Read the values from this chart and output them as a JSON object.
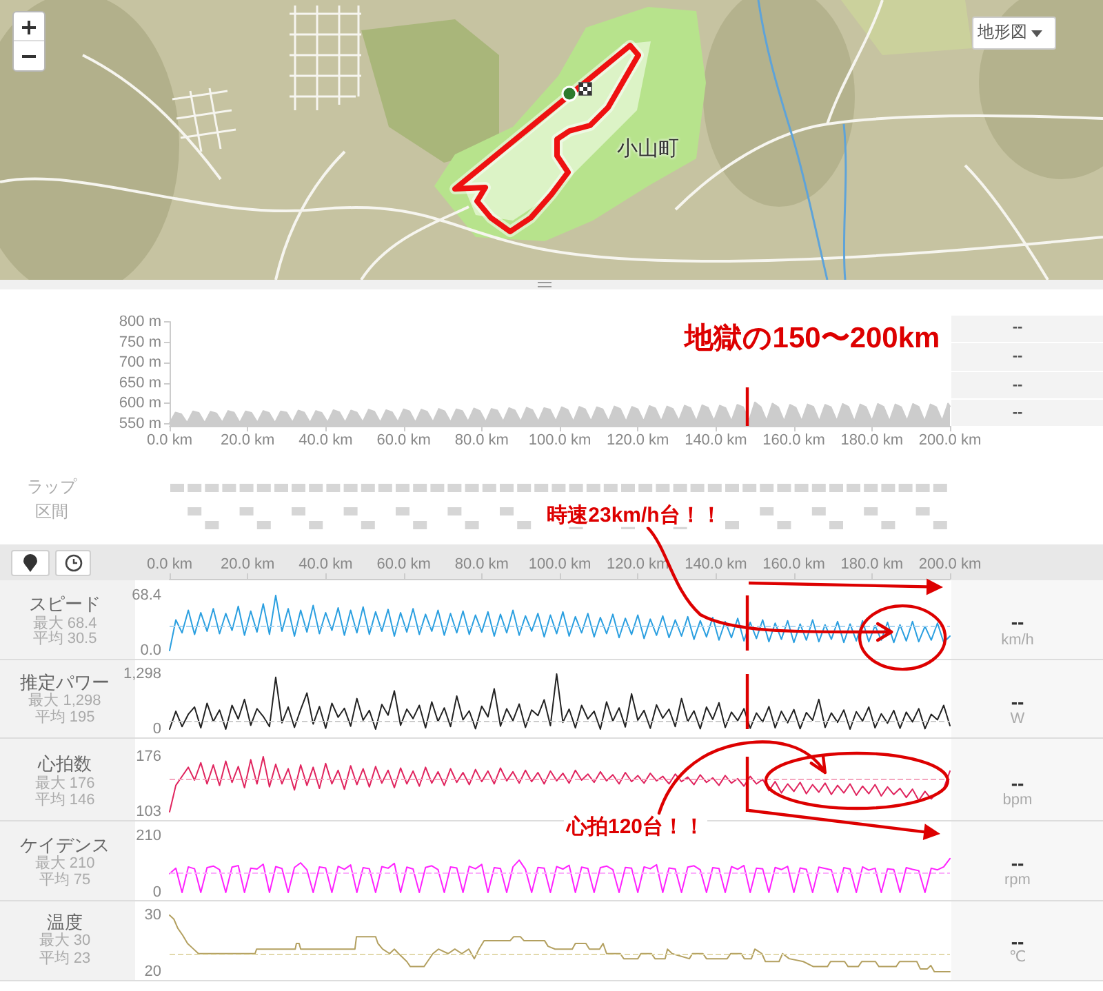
{
  "chart_data": [
    {
      "type": "other",
      "annotations": [
        "地形図",
        "小山町"
      ]
    },
    {
      "type": "area",
      "x": [
        0,
        1.5,
        3,
        4.5,
        6,
        7.5,
        9,
        10.5,
        12,
        13.5,
        15,
        16.5,
        18,
        19.5,
        21,
        22.5,
        24,
        25.5,
        27,
        28.5,
        30,
        31.5,
        33,
        34.5,
        36,
        37.5,
        39,
        40.5,
        42,
        43.5,
        45,
        46.5,
        48,
        49.5,
        51,
        52.5,
        54,
        55.5,
        57,
        58.5,
        60,
        61.5,
        63,
        64.5,
        66,
        67.5,
        69,
        70.5,
        72,
        73.5,
        75,
        76.5,
        78,
        79.5,
        81,
        82.5,
        84,
        85.5,
        87,
        88.5,
        90,
        91.5,
        93,
        94.5,
        96,
        97.5,
        99,
        100.5,
        102,
        103.5,
        105,
        106.5,
        108,
        109.5,
        111,
        112.5,
        114,
        115.5,
        117,
        118.5,
        120,
        121.5,
        123,
        124.5,
        126,
        127.5,
        129,
        130.5,
        132,
        133.5,
        135,
        136.5,
        138,
        139.5,
        141,
        142.5,
        144,
        145.5,
        147,
        148.5,
        150,
        151.5,
        153,
        154.5,
        156,
        157.5,
        159,
        160.5,
        162,
        163.5,
        165,
        166.5,
        168,
        169.5,
        171,
        172.5,
        174,
        175.5,
        177,
        178.5,
        180,
        181.5,
        183,
        184.5,
        186,
        187.5,
        189,
        190.5,
        192,
        193.5,
        195,
        196.5,
        198,
        199.5,
        200
      ],
      "values": [
        552,
        578,
        574,
        553,
        581,
        577,
        553,
        580,
        576,
        554,
        582,
        578,
        553,
        581,
        577,
        554,
        582,
        577,
        553,
        581,
        578,
        554,
        583,
        578,
        553,
        582,
        577,
        554,
        584,
        579,
        554,
        583,
        578,
        555,
        585,
        580,
        554,
        584,
        579,
        555,
        586,
        581,
        554,
        585,
        580,
        555,
        587,
        581,
        555,
        586,
        582,
        556,
        588,
        582,
        555,
        587,
        583,
        556,
        589,
        583,
        556,
        590,
        584,
        556,
        589,
        585,
        557,
        591,
        585,
        556,
        592,
        586,
        557,
        591,
        586,
        557,
        593,
        587,
        556,
        592,
        586,
        557,
        594,
        588,
        557,
        593,
        587,
        558,
        595,
        589,
        557,
        596,
        590,
        558,
        595,
        589,
        557,
        597,
        591,
        558,
        603,
        592,
        558,
        600,
        591,
        557,
        597,
        590,
        558,
        598,
        592,
        557,
        597,
        591,
        558,
        599,
        592,
        557,
        598,
        591,
        558,
        599,
        592,
        557,
        598,
        591,
        558,
        599,
        592,
        557,
        598,
        591,
        558,
        600,
        593
      ],
      "color": "#cccccc",
      "xlim": [
        0,
        200
      ],
      "xticks": [
        {
          "value": 0,
          "label": "0.0 km"
        },
        {
          "value": 20,
          "label": "20.0 km"
        },
        {
          "value": 40,
          "label": "40.0 km"
        },
        {
          "value": 60,
          "label": "60.0 km"
        },
        {
          "value": 80,
          "label": "80.0 km"
        },
        {
          "value": 100,
          "label": "100.0 km"
        },
        {
          "value": 120,
          "label": "120.0 km"
        },
        {
          "value": 140,
          "label": "140.0 km"
        },
        {
          "value": 160,
          "label": "160.0 km"
        },
        {
          "value": 180,
          "label": "180.0 km"
        },
        {
          "value": 200,
          "label": "200.0 km"
        }
      ],
      "ylim": [
        545,
        800
      ],
      "yticks": [
        {
          "value": 550,
          "label": "550 m"
        },
        {
          "value": 600,
          "label": "600 m"
        },
        {
          "value": 650,
          "label": "650 m"
        },
        {
          "value": 700,
          "label": "700 m"
        },
        {
          "value": 750,
          "label": "750 m"
        },
        {
          "value": 800,
          "label": "800 m"
        }
      ],
      "ref_lines": [
        {
          "axis": "x",
          "value": 148,
          "color": "#dd0000"
        }
      ],
      "annotations": [
        "地獄の150〜200km",
        "--",
        "--",
        "--",
        "--"
      ]
    },
    {
      "type": "other",
      "annotations": [
        "ラップ",
        "区間"
      ]
    },
    {
      "type": "line",
      "ylabel": "スピード",
      "x": [
        0,
        1.6,
        3.2,
        4.8,
        6.4,
        8,
        9.6,
        11.2,
        12.8,
        14.4,
        16,
        17.6,
        19.2,
        20.8,
        22.4,
        24,
        25.6,
        27.2,
        28.8,
        30.4,
        32,
        33.6,
        35.2,
        36.8,
        38.4,
        40,
        41.6,
        43.2,
        44.8,
        46.4,
        48,
        49.6,
        51.2,
        52.8,
        54.4,
        56,
        57.6,
        59.2,
        60.8,
        62.4,
        64,
        65.6,
        67.2,
        68.8,
        70.4,
        72,
        73.6,
        75.2,
        76.8,
        78.4,
        80,
        81.6,
        83.2,
        84.8,
        86.4,
        88,
        89.6,
        91.2,
        92.8,
        94.4,
        96,
        97.6,
        99.2,
        100.8,
        102.4,
        104,
        105.6,
        107.2,
        108.8,
        110.4,
        112,
        113.6,
        115.2,
        116.8,
        118.4,
        120,
        121.6,
        123.2,
        124.8,
        126.4,
        128,
        129.6,
        131.2,
        132.8,
        134.4,
        136,
        137.6,
        139.2,
        140.8,
        142.4,
        144,
        145.6,
        147.2,
        148.8,
        150.4,
        152,
        153.6,
        155.2,
        156.8,
        158.4,
        160,
        161.6,
        163.2,
        164.8,
        166.4,
        168,
        169.6,
        171.2,
        172.8,
        174.4,
        176,
        177.6,
        179.2,
        180.8,
        182.4,
        184,
        185.6,
        187.2,
        188.8,
        190.4,
        192,
        193.6,
        195.2,
        196.8,
        198.4,
        200
      ],
      "values": [
        0,
        38,
        22,
        50,
        20,
        47,
        24,
        52,
        21,
        46,
        25,
        55,
        19,
        49,
        23,
        58,
        20,
        68.4,
        24,
        52,
        18,
        50,
        23,
        56,
        21,
        47,
        25,
        53,
        19,
        50,
        22,
        54,
        20,
        48,
        24,
        51,
        18,
        47,
        23,
        52,
        20,
        45,
        24,
        50,
        19,
        46,
        22,
        49,
        20,
        44,
        23,
        48,
        18,
        45,
        22,
        50,
        19,
        43,
        24,
        46,
        17,
        44,
        21,
        48,
        18,
        42,
        22,
        46,
        17,
        41,
        21,
        45,
        16,
        40,
        20,
        44,
        15,
        39,
        19,
        43,
        16,
        38,
        18,
        42,
        14,
        37,
        17,
        41,
        13,
        36,
        16,
        40,
        12,
        35,
        15,
        38,
        11,
        34,
        14,
        37,
        10,
        33,
        13,
        38,
        11,
        32,
        14,
        36,
        10,
        33,
        12,
        37,
        11,
        31,
        13,
        35,
        10,
        32,
        12,
        36,
        11,
        30,
        13,
        34,
        10,
        18
      ],
      "color": "#2a9fe0",
      "xlim": [
        0,
        200
      ],
      "x2lim": [
        0,
        200
      ],
      "x2ticks": [
        {
          "value": 0,
          "label": "0.0 km"
        },
        {
          "value": 20,
          "label": "20.0 km"
        },
        {
          "value": 40,
          "label": "40.0 km"
        },
        {
          "value": 60,
          "label": "60.0 km"
        },
        {
          "value": 80,
          "label": "80.0 km"
        },
        {
          "value": 100,
          "label": "100.0 km"
        },
        {
          "value": 120,
          "label": "120.0 km"
        },
        {
          "value": 140,
          "label": "140.0 km"
        },
        {
          "value": 160,
          "label": "160.0 km"
        },
        {
          "value": 180,
          "label": "180.0 km"
        },
        {
          "value": 200,
          "label": "200.0 km"
        }
      ],
      "ylim": [
        0,
        68.4
      ],
      "yticks": [
        {
          "value": 0,
          "label": "0.0"
        },
        68.4
      ],
      "ref_lines": [
        {
          "axis": "y",
          "value": 30.5,
          "color": "#a9d4f0",
          "line_style": "dashed"
        },
        {
          "axis": "x",
          "value": 148,
          "color": "#dd0000"
        }
      ],
      "annotations": [
        "最大 68.4",
        "平均 30.5",
        "--",
        "km/h",
        {
          "text": "時速23km/h台！！",
          "x": 185,
          "y": 23
        }
      ]
    },
    {
      "type": "line",
      "ylabel": "推定パワー",
      "x": [
        0,
        1.6,
        3.2,
        4.8,
        6.4,
        8,
        9.6,
        11.2,
        12.8,
        14.4,
        16,
        17.6,
        19.2,
        20.8,
        22.4,
        24,
        25.6,
        27.2,
        28.8,
        30.4,
        32,
        33.6,
        35.2,
        36.8,
        38.4,
        40,
        41.6,
        43.2,
        44.8,
        46.4,
        48,
        49.6,
        51.2,
        52.8,
        54.4,
        56,
        57.6,
        59.2,
        60.8,
        62.4,
        64,
        65.6,
        67.2,
        68.8,
        70.4,
        72,
        73.6,
        75.2,
        76.8,
        78.4,
        80,
        81.6,
        83.2,
        84.8,
        86.4,
        88,
        89.6,
        91.2,
        92.8,
        94.4,
        96,
        97.6,
        99.2,
        100.8,
        102.4,
        104,
        105.6,
        107.2,
        108.8,
        110.4,
        112,
        113.6,
        115.2,
        116.8,
        118.4,
        120,
        121.6,
        123.2,
        124.8,
        126.4,
        128,
        129.6,
        131.2,
        132.8,
        134.4,
        136,
        137.6,
        139.2,
        140.8,
        142.4,
        144,
        145.6,
        147.2,
        148.8,
        150.4,
        152,
        153.6,
        155.2,
        156.8,
        158.4,
        160,
        161.6,
        163.2,
        164.8,
        166.4,
        168,
        169.6,
        171.2,
        172.8,
        174.4,
        176,
        177.6,
        179.2,
        180.8,
        182.4,
        184,
        185.6,
        187.2,
        188.8,
        190.4,
        192,
        193.6,
        195.2,
        196.8,
        198.4,
        200
      ],
      "values": [
        0,
        420,
        60,
        350,
        520,
        30,
        610,
        180,
        450,
        0,
        560,
        240,
        700,
        90,
        480,
        300,
        60,
        1220,
        150,
        520,
        40,
        460,
        850,
        120,
        530,
        20,
        610,
        280,
        490,
        70,
        720,
        210,
        440,
        0,
        580,
        330,
        900,
        90,
        470,
        250,
        560,
        30,
        640,
        180,
        500,
        60,
        780,
        220,
        430,
        10,
        540,
        290,
        950,
        70,
        480,
        200,
        590,
        40,
        450,
        320,
        690,
        80,
        1298,
        160,
        470,
        30,
        560,
        240,
        420,
        0,
        640,
        190,
        500,
        50,
        830,
        210,
        440,
        20,
        570,
        260,
        470,
        60,
        720,
        180,
        430,
        10,
        520,
        230,
        620,
        40,
        400,
        200,
        480,
        20,
        380,
        170,
        530,
        30,
        420,
        150,
        460,
        10,
        390,
        210,
        700,
        40,
        380,
        160,
        450,
        0,
        410,
        190,
        520,
        30,
        360,
        140,
        440,
        20,
        400,
        170,
        480,
        10,
        350,
        220,
        560,
        80
      ],
      "color": "#222222",
      "xlim": [
        0,
        200
      ],
      "ylim": [
        0,
        1298
      ],
      "yticks": [
        0,
        {
          "value": 1298,
          "label": "1,298"
        }
      ],
      "tick_labels": "y",
      "ref_lines": [
        {
          "axis": "y",
          "value": 195,
          "color": "#cccccc",
          "line_style": "dashed"
        },
        {
          "axis": "x",
          "value": 148,
          "color": "#dd0000"
        }
      ],
      "annotations": [
        "最大 1,298",
        "平均 195",
        "--",
        "W"
      ]
    },
    {
      "type": "line",
      "ylabel": "心拍数",
      "x": [
        0,
        1.6,
        3.2,
        4.8,
        6.4,
        8,
        9.6,
        11.2,
        12.8,
        14.4,
        16,
        17.6,
        19.2,
        20.8,
        22.4,
        24,
        25.6,
        27.2,
        28.8,
        30.4,
        32,
        33.6,
        35.2,
        36.8,
        38.4,
        40,
        41.6,
        43.2,
        44.8,
        46.4,
        48,
        49.6,
        51.2,
        52.8,
        54.4,
        56,
        57.6,
        59.2,
        60.8,
        62.4,
        64,
        65.6,
        67.2,
        68.8,
        70.4,
        72,
        73.6,
        75.2,
        76.8,
        78.4,
        80,
        81.6,
        83.2,
        84.8,
        86.4,
        88,
        89.6,
        91.2,
        92.8,
        94.4,
        96,
        97.6,
        99.2,
        100.8,
        102.4,
        104,
        105.6,
        107.2,
        108.8,
        110.4,
        112,
        113.6,
        115.2,
        116.8,
        118.4,
        120,
        121.6,
        123.2,
        124.8,
        126.4,
        128,
        129.6,
        131.2,
        132.8,
        134.4,
        136,
        137.6,
        139.2,
        140.8,
        142.4,
        144,
        145.6,
        147.2,
        148.8,
        150.4,
        152,
        153.6,
        155.2,
        156.8,
        158.4,
        160,
        161.6,
        163.2,
        164.8,
        166.4,
        168,
        169.6,
        171.2,
        172.8,
        174.4,
        176,
        177.6,
        179.2,
        180.8,
        182.4,
        184,
        185.6,
        187.2,
        188.8,
        190.4,
        192,
        193.6,
        195.2,
        196.8,
        198.4,
        200
      ],
      "values": [
        103,
        138,
        150,
        162,
        145,
        168,
        140,
        165,
        138,
        170,
        142,
        163,
        135,
        172,
        140,
        176,
        136,
        166,
        140,
        160,
        132,
        165,
        138,
        162,
        134,
        167,
        140,
        158,
        133,
        164,
        139,
        160,
        136,
        163,
        141,
        158,
        135,
        161,
        140,
        157,
        137,
        162,
        141,
        156,
        138,
        160,
        142,
        155,
        139,
        159,
        143,
        157,
        140,
        161,
        144,
        156,
        141,
        158,
        143,
        155,
        140,
        157,
        144,
        154,
        141,
        158,
        145,
        153,
        142,
        156,
        144,
        152,
        140,
        155,
        143,
        151,
        141,
        154,
        144,
        150,
        140,
        153,
        143,
        149,
        139,
        152,
        142,
        148,
        138,
        151,
        141,
        147,
        137,
        150,
        140,
        146,
        131,
        143,
        128,
        140,
        130,
        142,
        127,
        139,
        129,
        141,
        126,
        138,
        128,
        140,
        125,
        137,
        127,
        139,
        124,
        136,
        126,
        134,
        122,
        133,
        118,
        130,
        120,
        128,
        134,
        157
      ],
      "color": "#e0245e",
      "xlim": [
        0,
        200
      ],
      "ylim": [
        103,
        176
      ],
      "yticks": [
        103,
        176
      ],
      "tick_labels": "y",
      "ref_lines": [
        {
          "axis": "y",
          "value": 146,
          "color": "#f4a6bf",
          "line_style": "dashed"
        },
        {
          "axis": "x",
          "value": 148,
          "color": "#dd0000"
        }
      ],
      "annotations": [
        "最大 176",
        "平均 146",
        "--",
        "bpm",
        {
          "text": "心拍120台！！",
          "x": 168,
          "y": 155
        }
      ]
    },
    {
      "type": "line",
      "ylabel": "ケイデンス",
      "x": [
        0,
        1.6,
        3.2,
        4.8,
        6.4,
        8,
        9.6,
        11.2,
        12.8,
        14.4,
        16,
        17.6,
        19.2,
        20.8,
        22.4,
        24,
        25.6,
        27.2,
        28.8,
        30.4,
        32,
        33.6,
        35.2,
        36.8,
        38.4,
        40,
        41.6,
        43.2,
        44.8,
        46.4,
        48,
        49.6,
        51.2,
        52.8,
        54.4,
        56,
        57.6,
        59.2,
        60.8,
        62.4,
        64,
        65.6,
        67.2,
        68.8,
        70.4,
        72,
        73.6,
        75.2,
        76.8,
        78.4,
        80,
        81.6,
        83.2,
        84.8,
        86.4,
        88,
        89.6,
        91.2,
        92.8,
        94.4,
        96,
        97.6,
        99.2,
        100.8,
        102.4,
        104,
        105.6,
        107.2,
        108.8,
        110.4,
        112,
        113.6,
        115.2,
        116.8,
        118.4,
        120,
        121.6,
        123.2,
        124.8,
        126.4,
        128,
        129.6,
        131.2,
        132.8,
        134.4,
        136,
        137.6,
        139.2,
        140.8,
        142.4,
        144,
        145.6,
        147.2,
        148.8,
        150.4,
        152,
        153.6,
        155.2,
        156.8,
        158.4,
        160,
        161.6,
        163.2,
        164.8,
        166.4,
        168,
        169.6,
        171.2,
        172.8,
        174.4,
        176,
        177.6,
        179.2,
        180.8,
        182.4,
        184,
        185.6,
        187.2,
        188.8,
        190.4,
        192,
        193.6,
        195.2,
        196.8,
        198.4,
        200
      ],
      "values": [
        70,
        90,
        0,
        95,
        88,
        0,
        92,
        98,
        85,
        0,
        94,
        100,
        0,
        90,
        87,
        105,
        0,
        96,
        89,
        0,
        93,
        110,
        84,
        0,
        95,
        91,
        0,
        97,
        86,
        102,
        0,
        92,
        88,
        0,
        96,
        90,
        108,
        0,
        94,
        87,
        0,
        93,
        99,
        85,
        0,
        95,
        91,
        0,
        97,
        88,
        104,
        0,
        92,
        89,
        0,
        95,
        120,
        86,
        0,
        93,
        90,
        0,
        96,
        87,
        101,
        0,
        94,
        89,
        0,
        92,
        98,
        85,
        0,
        93,
        90,
        0,
        95,
        88,
        103,
        0,
        91,
        87,
        0,
        94,
        99,
        84,
        0,
        92,
        89,
        0,
        96,
        86,
        100,
        0,
        90,
        88,
        0,
        93,
        85,
        97,
        0,
        91,
        86,
        0,
        94,
        89,
        84,
        0,
        92,
        87,
        0,
        95,
        83,
        90,
        0,
        88,
        85,
        0,
        92,
        86,
        81,
        0,
        90,
        84,
        95,
        126
      ],
      "color": "#ff22ff",
      "xlim": [
        0,
        200
      ],
      "ylim": [
        0,
        210
      ],
      "yticks": [
        0,
        210
      ],
      "tick_labels": "y",
      "ref_lines": [
        {
          "axis": "y",
          "value": 75,
          "color": "#fbb0fb",
          "line_style": "dashed"
        }
      ],
      "annotations": [
        "最大 210",
        "平均 75",
        "--",
        "rpm"
      ]
    },
    {
      "type": "line",
      "ylabel": "温度",
      "x": [
        0,
        1.1,
        2.1,
        3.4,
        4.6,
        6,
        7.4,
        21.9,
        22.3,
        32.2,
        32.5,
        33.2,
        33.6,
        47.5,
        47.9,
        52.8,
        53.4,
        54.6,
        56.4,
        57.6,
        58.7,
        60.8,
        61.7,
        65.2,
        66.1,
        67.5,
        68.9,
        71.4,
        73.1,
        74.9,
        76.7,
        78.1,
        79.3,
        80.6,
        87.3,
        88.2,
        89.9,
        90.8,
        96.1,
        97,
        98.8,
        103.2,
        104,
        106.7,
        107.6,
        110.2,
        111.1,
        112,
        115.5,
        116.4,
        120,
        120.8,
        123.5,
        124.4,
        127,
        127.6,
        128.8,
        133.2,
        134,
        136.7,
        137.6,
        142.9,
        143.8,
        146.5,
        147.3,
        149.1,
        150,
        151.8,
        152.7,
        156.2,
        157.1,
        158.8,
        162.4,
        165,
        168.6,
        169.4,
        173,
        173.9,
        176.5,
        177.4,
        180.9,
        181.8,
        186.2,
        187.1,
        191.5,
        192.4,
        194.2,
        195.1,
        196,
        200
      ],
      "values": [
        30,
        29.3,
        27.7,
        26.4,
        25,
        24.1,
        23.2,
        23.2,
        24,
        24,
        25,
        25,
        24,
        24,
        26.2,
        26.2,
        25,
        24,
        23.2,
        24,
        23.2,
        21.8,
        20.9,
        20.9,
        21.8,
        23.2,
        24,
        23.2,
        24,
        23.2,
        24,
        22.3,
        24,
        25.5,
        25.5,
        26.2,
        26.2,
        25.5,
        25.5,
        24.5,
        24,
        24,
        25,
        25,
        24,
        24,
        25,
        23.2,
        23.2,
        22.3,
        22.3,
        23.2,
        23.2,
        22.3,
        22.3,
        24,
        23.2,
        22.3,
        23.2,
        23.2,
        22.3,
        22.3,
        23.2,
        23.2,
        22.3,
        22.3,
        24,
        23.2,
        21.8,
        21.8,
        23.2,
        22.3,
        21.8,
        20.9,
        20.9,
        21.8,
        21.8,
        20.9,
        20.9,
        21.8,
        21.8,
        20.9,
        20.9,
        21.8,
        21.8,
        20.5,
        20.5,
        21.1,
        20,
        20
      ],
      "color": "#b3a060",
      "xlim": [
        0,
        200
      ],
      "ylim": [
        20,
        30
      ],
      "yticks": [
        20,
        30
      ],
      "tick_labels": "y",
      "ref_lines": [
        {
          "axis": "y",
          "value": 23,
          "color": "#e2d9ac",
          "line_style": "dashed"
        }
      ],
      "annotations": [
        "最大 30",
        "平均 23",
        "--",
        "℃"
      ]
    }
  ]
}
